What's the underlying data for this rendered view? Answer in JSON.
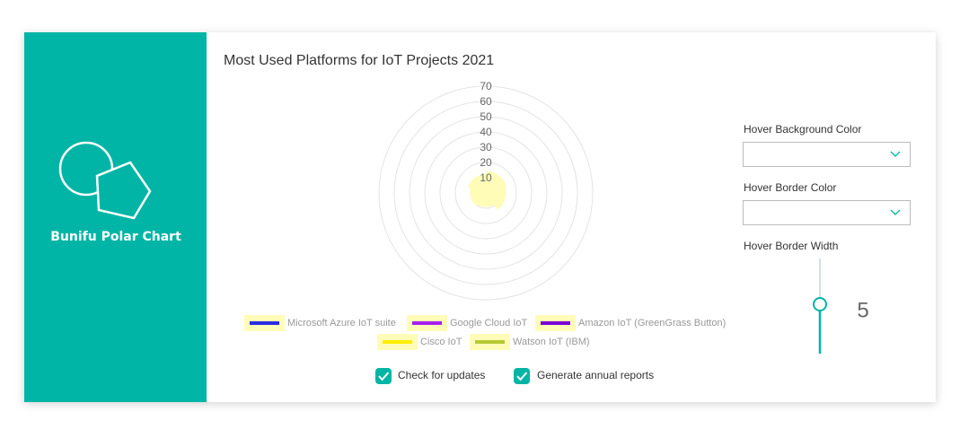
{
  "sidebar": {
    "title": "Bunifu Polar Chart"
  },
  "chart_data": {
    "type": "polar",
    "title": "Most Used Platforms for IoT Projects 2021",
    "categories": [
      "Microsoft Azure IoT suite",
      "Google Cloud IoT",
      "Amazon IoT (GreenGrass Button)",
      "Cisco IoT",
      "Watson IoT (IBM)"
    ],
    "values": [
      14,
      13,
      9,
      10,
      12
    ],
    "colors": [
      "#2b2be6",
      "#a51ff0",
      "#7a00d6",
      "#ffee00",
      "#b6c935"
    ],
    "fill": "#fffcb8",
    "ylim": [
      0,
      70
    ],
    "yticks": [
      10,
      20,
      30,
      40,
      50,
      60,
      70
    ],
    "grid": true
  },
  "controls": {
    "hover_background_label": "Hover Background Color",
    "hover_border_label": "Hover Border Color",
    "hover_width_label": "Hover Border Width",
    "hover_width_value": "5",
    "checkboxes": [
      "Check for updates",
      "Generate annual reports"
    ]
  }
}
